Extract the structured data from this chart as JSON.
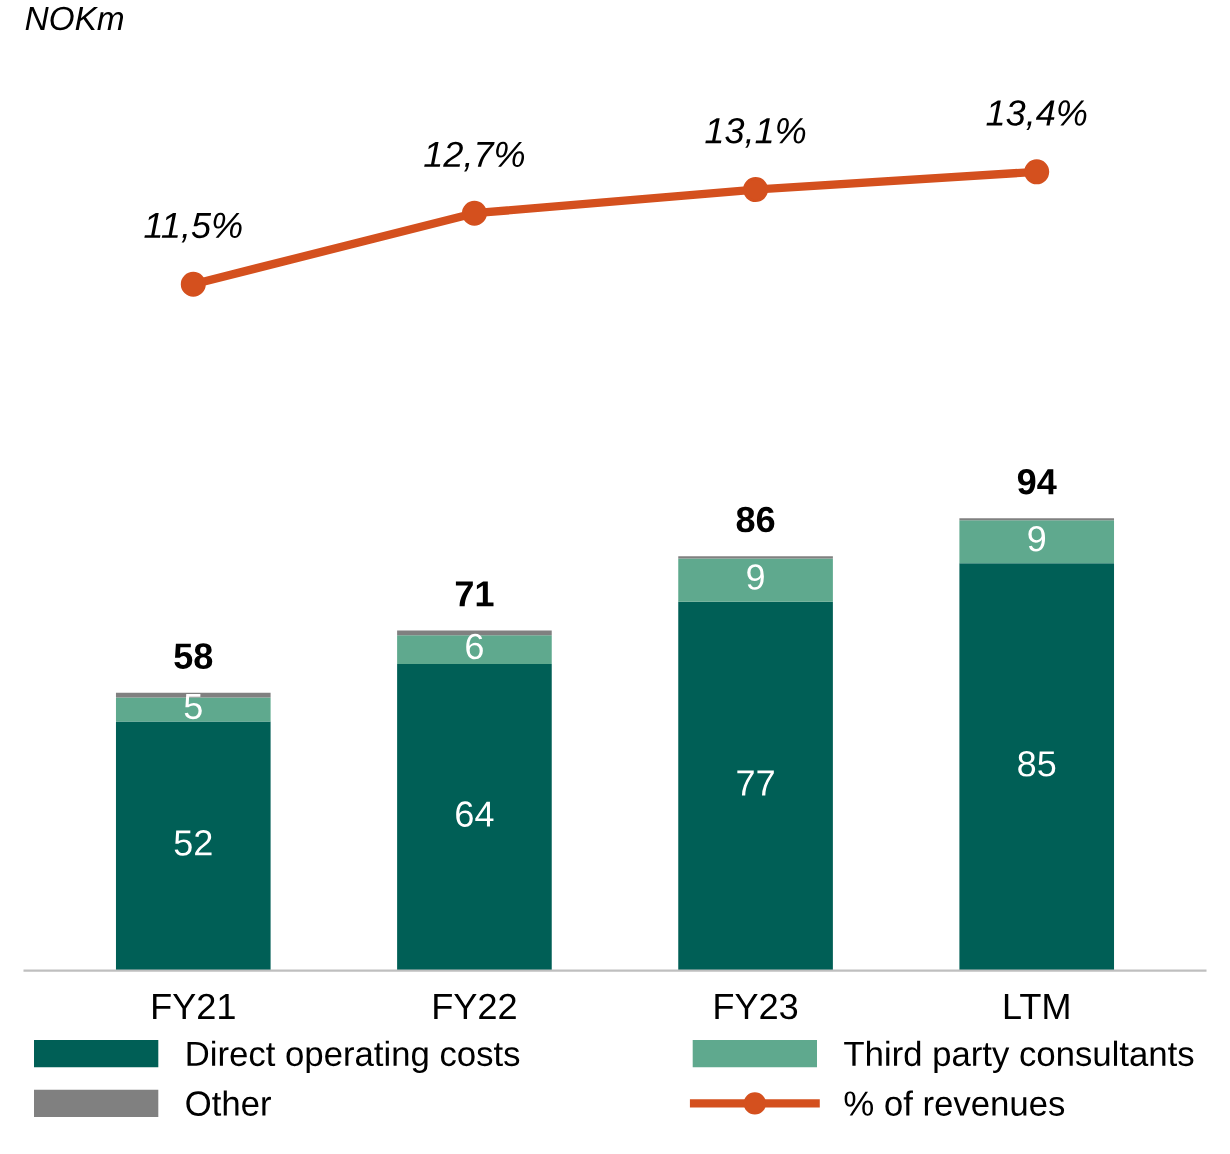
{
  "chart_data": [
    {
      "type": "line",
      "categories": [
        null,
        null,
        null,
        null
      ],
      "tick_labels": false,
      "legend": "bottom",
      "series": [
        {
          "name": "% of revenues",
          "color": "#d4501e",
          "marker": "circle",
          "values": [
            11.5,
            12.7,
            13.1,
            13.4
          ],
          "value_labels": [
            "11,5%",
            "12,7%",
            "13,1%",
            "13,4%"
          ]
        }
      ],
      "annotations": [
        "NOKm"
      ]
    },
    {
      "type": "bar",
      "stacked": true,
      "categories": [
        "FY21",
        "FY22",
        "FY23",
        "LTM"
      ],
      "series": [
        {
          "name": "Direct operating costs",
          "color": "#005f56",
          "values": [
            52,
            64,
            77,
            85
          ],
          "value_labels": [
            "52",
            "64",
            "77",
            "85"
          ]
        },
        {
          "name": "Third party consultants",
          "color": "#5fa98e",
          "values": [
            5,
            6,
            9,
            9
          ],
          "value_labels": [
            "5",
            "6",
            "9",
            "9"
          ]
        },
        {
          "name": "Other",
          "color": "#808080",
          "values": [
            1,
            1,
            0.5,
            0.4
          ]
        }
      ],
      "totals": [
        "58",
        "71",
        "86",
        "94"
      ],
      "tick_labels": "x",
      "legend": "bottom"
    }
  ]
}
